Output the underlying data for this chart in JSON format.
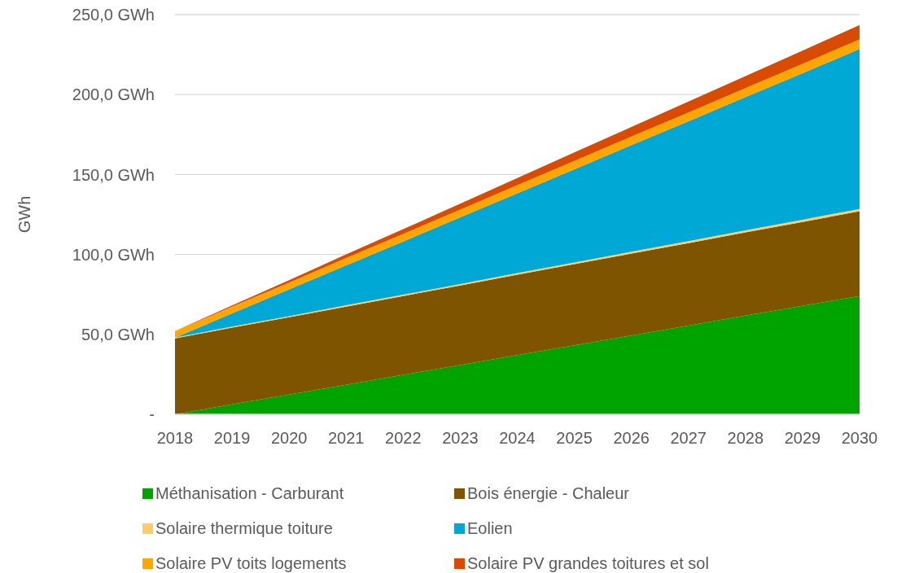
{
  "chart_data": {
    "type": "area",
    "stacked": true,
    "ylabel": "GWh",
    "categories": [
      "2018",
      "2019",
      "2020",
      "2021",
      "2022",
      "2023",
      "2024",
      "2025",
      "2026",
      "2027",
      "2028",
      "2029",
      "2030"
    ],
    "series": [
      {
        "name": "Méthanisation - Carburant",
        "color": "#00a400",
        "values": [
          0,
          6.2,
          12.3,
          18.5,
          24.7,
          30.8,
          37,
          43.2,
          49.3,
          55.5,
          61.7,
          67.8,
          74
        ]
      },
      {
        "name": "Bois énergie - Chaleur",
        "color": "#7f5400",
        "values": [
          47.5,
          48,
          48.4,
          48.9,
          49.3,
          49.8,
          50.3,
          50.7,
          51.2,
          51.6,
          52.1,
          52.5,
          53
        ]
      },
      {
        "name": "Solaire thermique toiture",
        "color": "#ffcc66",
        "values": [
          0.5,
          0.6,
          0.7,
          0.8,
          0.8,
          0.9,
          1,
          1.1,
          1.2,
          1.2,
          1.3,
          1.4,
          1.5
        ]
      },
      {
        "name": "Eolien",
        "color": "#00a9d5",
        "values": [
          0,
          8.3,
          16.7,
          25,
          33.3,
          41.7,
          50,
          58.3,
          66.7,
          75,
          83.3,
          91.7,
          100
        ]
      },
      {
        "name": "Solaire PV toits logements",
        "color": "#ffa600",
        "values": [
          4,
          4.2,
          4.3,
          4.5,
          4.7,
          4.8,
          5,
          5.2,
          5.3,
          5.5,
          5.7,
          5.8,
          6
        ]
      },
      {
        "name": "Solaire PV grandes toitures et sol",
        "color": "#d84b00",
        "values": [
          0,
          0.8,
          1.5,
          2.3,
          3,
          3.8,
          4.5,
          5.3,
          6,
          6.8,
          7.5,
          8.3,
          9
        ]
      }
    ],
    "ylim": [
      0,
      250
    ],
    "yticks": [
      {
        "value": 0,
        "label": "-"
      },
      {
        "value": 50,
        "label": "50,0 GWh"
      },
      {
        "value": 100,
        "label": "100,0 GWh"
      },
      {
        "value": 150,
        "label": "150,0 GWh"
      },
      {
        "value": 200,
        "label": "200,0 GWh"
      },
      {
        "value": 250,
        "label": "250,0 GWh"
      }
    ],
    "grid": "y",
    "legend": "bottom"
  }
}
